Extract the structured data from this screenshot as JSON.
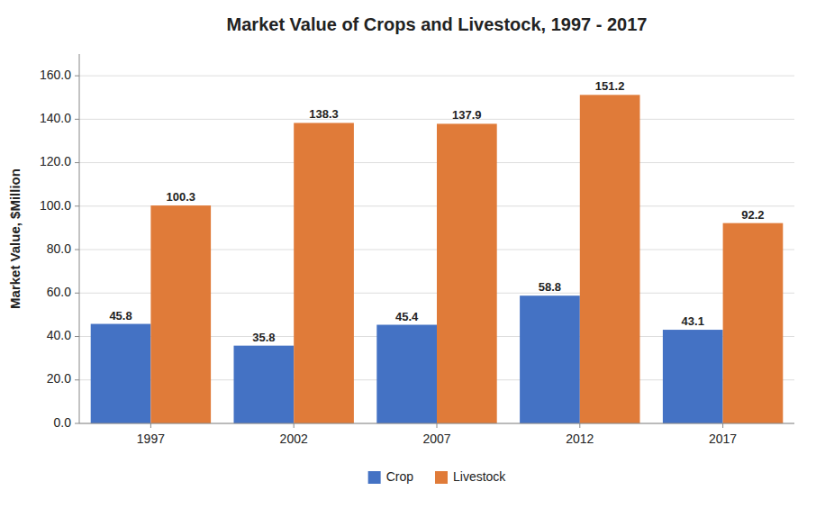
{
  "chart_data": {
    "type": "bar",
    "title": "Market Value of Crops and Livestock, 1997 - 2017",
    "y_label": "Market Value, $Million",
    "categories": [
      "1997",
      "2002",
      "2007",
      "2012",
      "2017"
    ],
    "series": [
      {
        "name": "Crop",
        "color": "#4472C4",
        "values": [
          45.8,
          35.8,
          45.4,
          58.8,
          43.1
        ]
      },
      {
        "name": "Livestock",
        "color": "#E07B39",
        "values": [
          100.3,
          138.3,
          137.9,
          151.2,
          92.2
        ]
      }
    ],
    "ylim": [
      0,
      170.0
    ],
    "yticks": [
      {
        "value": 0.0,
        "label": "0.0"
      },
      {
        "value": 20.0,
        "label": "20.0"
      },
      {
        "value": 40.0,
        "label": "40.0"
      },
      {
        "value": 60.0,
        "label": "60.0"
      },
      {
        "value": 80.0,
        "label": "80.0"
      },
      {
        "value": 100.0,
        "label": "100.0"
      },
      {
        "value": 120.0,
        "label": "120.0"
      },
      {
        "value": 140.0,
        "label": "140.0"
      },
      {
        "value": 160.0,
        "label": "160.0"
      }
    ],
    "grid": true,
    "legend": "bottom",
    "data_labels": true
  }
}
